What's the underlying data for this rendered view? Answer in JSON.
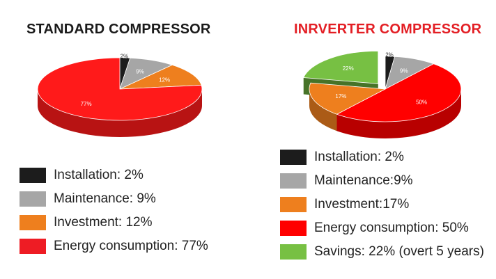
{
  "titles": {
    "left": "STANDARD COMPRESSOR",
    "right": "INRVERTER COMPRESSOR"
  },
  "legends": {
    "left": [
      {
        "label": "Installation: 2%",
        "color": "#1c1c1c"
      },
      {
        "label": "Maintenance: 9%",
        "color": "#a6a6a6"
      },
      {
        "label": "Investment: 12%",
        "color": "#ee7f1e"
      },
      {
        "label": "Energy consumption: 77%",
        "color": "#ee1c24"
      }
    ],
    "right": [
      {
        "label": "Installation: 2%",
        "color": "#1c1c1c"
      },
      {
        "label": "Maintenance:9%",
        "color": "#a6a6a6"
      },
      {
        "label": "Investment:17%",
        "color": "#ee7f1e"
      },
      {
        "label": "Energy consumption: 50%",
        "color": "#ff0000"
      },
      {
        "label": "Savings: 22% (overt 5 years)",
        "color": "#77c043"
      }
    ]
  },
  "chart_data": [
    {
      "type": "pie",
      "title": "STANDARD COMPRESSOR",
      "categories": [
        "Installation",
        "Maintenance",
        "Investment",
        "Energy consumption"
      ],
      "values": [
        2,
        9,
        12,
        77
      ],
      "labels": [
        "2%",
        "9%",
        "12%",
        "77%"
      ],
      "colors": [
        "#1c1c1c",
        "#a6a6a6",
        "#ee7f1e",
        "#ff1a1a"
      ],
      "style": "3d",
      "exploded": []
    },
    {
      "type": "pie",
      "title": "INRVERTER COMPRESSOR",
      "categories": [
        "Installation",
        "Maintenance",
        "Energy consumption",
        "Investment",
        "Savings"
      ],
      "values": [
        2,
        9,
        50,
        17,
        22
      ],
      "labels": [
        "2%",
        "9%",
        "50%",
        "17%",
        "22%"
      ],
      "colors": [
        "#1c1c1c",
        "#a6a6a6",
        "#ff0000",
        "#ee7f1e",
        "#77c043"
      ],
      "style": "3d",
      "exploded": [
        "Savings"
      ]
    }
  ]
}
